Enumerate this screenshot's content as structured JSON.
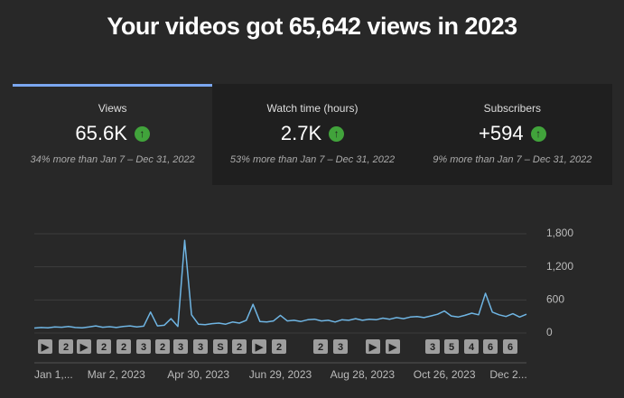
{
  "header": {
    "title": "Your videos got 65,642 views in 2023"
  },
  "cards": [
    {
      "label": "Views",
      "value": "65.6K",
      "note": "34% more than Jan 7 – Dec 31, 2022"
    },
    {
      "label": "Watch time (hours)",
      "value": "2.7K",
      "note": "53% more than Jan 7 – Dec 31, 2022"
    },
    {
      "label": "Subscribers",
      "value": "+594",
      "note": "9% more than Jan 7 – Dec 31, 2022"
    }
  ],
  "chart_data": {
    "type": "line",
    "categories": [
      "Jan 1,...",
      null,
      null,
      null,
      null,
      null,
      null,
      null,
      null,
      null,
      null,
      null,
      "Mar 2, 2023",
      null,
      null,
      null,
      null,
      null,
      null,
      null,
      null,
      null,
      null,
      null,
      "Apr 30, 2023",
      null,
      null,
      null,
      null,
      null,
      null,
      null,
      null,
      null,
      null,
      null,
      "Jun 29, 2023",
      null,
      null,
      null,
      null,
      null,
      null,
      null,
      null,
      null,
      null,
      null,
      "Aug 28, 2023",
      null,
      null,
      null,
      null,
      null,
      null,
      null,
      null,
      null,
      null,
      null,
      "Oct 26, 2023",
      null,
      null,
      null,
      null,
      null,
      null,
      null,
      null,
      null,
      null,
      null,
      "Dec 2..."
    ],
    "values": [
      90,
      100,
      95,
      110,
      105,
      120,
      100,
      95,
      110,
      130,
      105,
      115,
      100,
      120,
      130,
      110,
      125,
      380,
      130,
      140,
      260,
      120,
      1680,
      330,
      160,
      150,
      170,
      180,
      160,
      200,
      180,
      230,
      520,
      210,
      200,
      220,
      320,
      220,
      230,
      210,
      240,
      250,
      220,
      230,
      200,
      240,
      230,
      260,
      230,
      250,
      240,
      270,
      250,
      280,
      260,
      290,
      300,
      280,
      310,
      340,
      400,
      310,
      290,
      320,
      360,
      330,
      720,
      380,
      330,
      300,
      350,
      290,
      340
    ],
    "color": "#6fb5e3",
    "ylim": [
      0,
      1800
    ],
    "yticks": [
      0,
      600,
      {
        "value": 1200,
        "label": "1,200"
      },
      {
        "value": 1800,
        "label": "1,800"
      }
    ],
    "grid": true,
    "markers": [
      "▶",
      "2",
      "▶",
      "2",
      "2",
      "3",
      "2",
      "3",
      "3",
      "S",
      "2",
      "▶",
      "2",
      "2",
      "3",
      "▶",
      "▶",
      "3",
      "5",
      "4",
      "6",
      "6"
    ]
  }
}
